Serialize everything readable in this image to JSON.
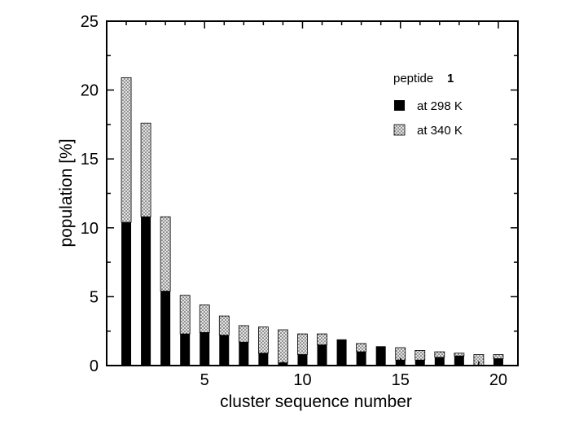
{
  "chart_data": {
    "type": "bar",
    "stacked": true,
    "xlabel": "cluster sequence number",
    "ylabel": "population [%]",
    "ylim": [
      0,
      25
    ],
    "xlim": [
      0,
      21
    ],
    "yticks": [
      0,
      5,
      10,
      15,
      20,
      25
    ],
    "xticks": [
      5,
      10,
      15,
      20
    ],
    "grid": false,
    "legend": {
      "placement": "top-right",
      "title": "peptide",
      "title_number": "1"
    },
    "categories": [
      1,
      2,
      3,
      4,
      5,
      6,
      7,
      8,
      9,
      10,
      11,
      12,
      13,
      14,
      15,
      16,
      17,
      18,
      19,
      20
    ],
    "series": [
      {
        "name": "at 298 K",
        "pattern": "solid",
        "color": "#000000",
        "values": [
          10.4,
          10.8,
          5.4,
          2.3,
          2.4,
          2.2,
          1.7,
          0.9,
          0.2,
          0.8,
          1.5,
          1.9,
          1.0,
          1.4,
          0.4,
          0.4,
          0.6,
          0.7,
          0.0,
          0.5
        ]
      },
      {
        "name": "at 340 K",
        "pattern": "dotted",
        "color": "#bdbdbd",
        "values": [
          10.5,
          6.8,
          5.4,
          2.8,
          2.0,
          1.4,
          1.2,
          1.9,
          2.4,
          1.5,
          0.8,
          0.0,
          0.6,
          0.0,
          0.9,
          0.7,
          0.4,
          0.2,
          0.8,
          0.3
        ]
      }
    ]
  }
}
